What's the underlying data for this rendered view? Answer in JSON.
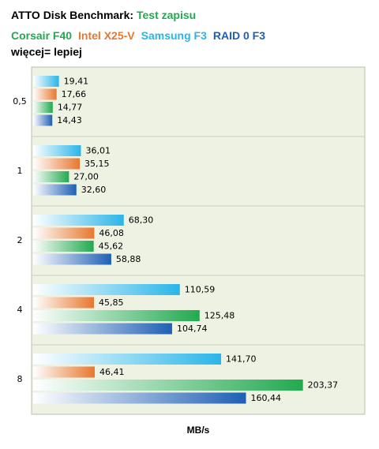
{
  "chart_data": {
    "type": "bar",
    "orientation": "horizontal",
    "title": "ATTO Disk Benchmark:",
    "title_highlight": "Test zapisu",
    "title_highlight_color": "#22a94f",
    "subtitle": "więcej= lepiej",
    "x_label": "MB/s",
    "categories": [
      "0,5",
      "1",
      "2",
      "4",
      "8"
    ],
    "series": [
      {
        "name": "Corsair F40",
        "color": "#22a94f",
        "values": [
          14.77,
          27.0,
          45.62,
          125.48,
          203.37
        ],
        "value_labels": [
          "14,77",
          "27,00",
          "45,62",
          "125,48",
          "203,37"
        ]
      },
      {
        "name": "Intel X25-V",
        "color": "#e8772e",
        "values": [
          17.66,
          35.15,
          46.08,
          45.85,
          46.41
        ],
        "value_labels": [
          "17,66",
          "35,15",
          "46,08",
          "45,85",
          "46,41"
        ]
      },
      {
        "name": "Samsung F3",
        "color": "#29b5e8",
        "values": [
          19.41,
          36.01,
          68.3,
          110.59,
          141.7
        ],
        "value_labels": [
          "19,41",
          "36,01",
          "68,30",
          "110,59",
          "141,70"
        ]
      },
      {
        "name": "RAID 0 F3",
        "color": "#1f5fb4",
        "values": [
          14.43,
          32.6,
          58.88,
          104.74,
          160.44
        ],
        "value_labels": [
          "14,43",
          "32,60",
          "58,88",
          "104,74",
          "160,44"
        ]
      }
    ],
    "xlim": [
      0,
      250
    ]
  }
}
